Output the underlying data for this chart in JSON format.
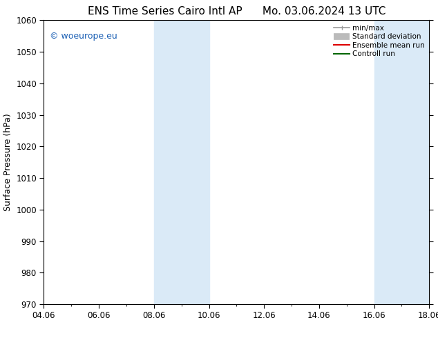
{
  "title_left": "ENS Time Series Cairo Intl AP",
  "title_right": "Mo. 03.06.2024 13 UTC",
  "ylabel": "Surface Pressure (hPa)",
  "ylim": [
    970,
    1060
  ],
  "yticks": [
    970,
    980,
    990,
    1000,
    1010,
    1020,
    1030,
    1040,
    1050,
    1060
  ],
  "xtick_labels": [
    "04.06",
    "06.06",
    "08.06",
    "10.06",
    "12.06",
    "14.06",
    "16.06",
    "18.06"
  ],
  "xtick_positions": [
    0,
    2,
    4,
    6,
    8,
    10,
    12,
    14
  ],
  "xlim": [
    0,
    14
  ],
  "shaded_bands": [
    {
      "x_start": 4,
      "x_end": 6,
      "color": "#daeaf7"
    },
    {
      "x_start": 12,
      "x_end": 14,
      "color": "#daeaf7"
    }
  ],
  "watermark": "© woeurope.eu",
  "watermark_color": "#1a5fb4",
  "legend_items": [
    {
      "label": "min/max",
      "color": "#999999",
      "lw": 1.2
    },
    {
      "label": "Standard deviation",
      "color": "#bbbbbb",
      "lw": 7
    },
    {
      "label": "Ensemble mean run",
      "color": "#dd0000",
      "lw": 1.5
    },
    {
      "label": "Controll run",
      "color": "#006600",
      "lw": 1.5
    }
  ],
  "background_color": "#ffffff",
  "title_fontsize": 11,
  "axis_label_fontsize": 9,
  "tick_fontsize": 8.5,
  "watermark_fontsize": 9
}
